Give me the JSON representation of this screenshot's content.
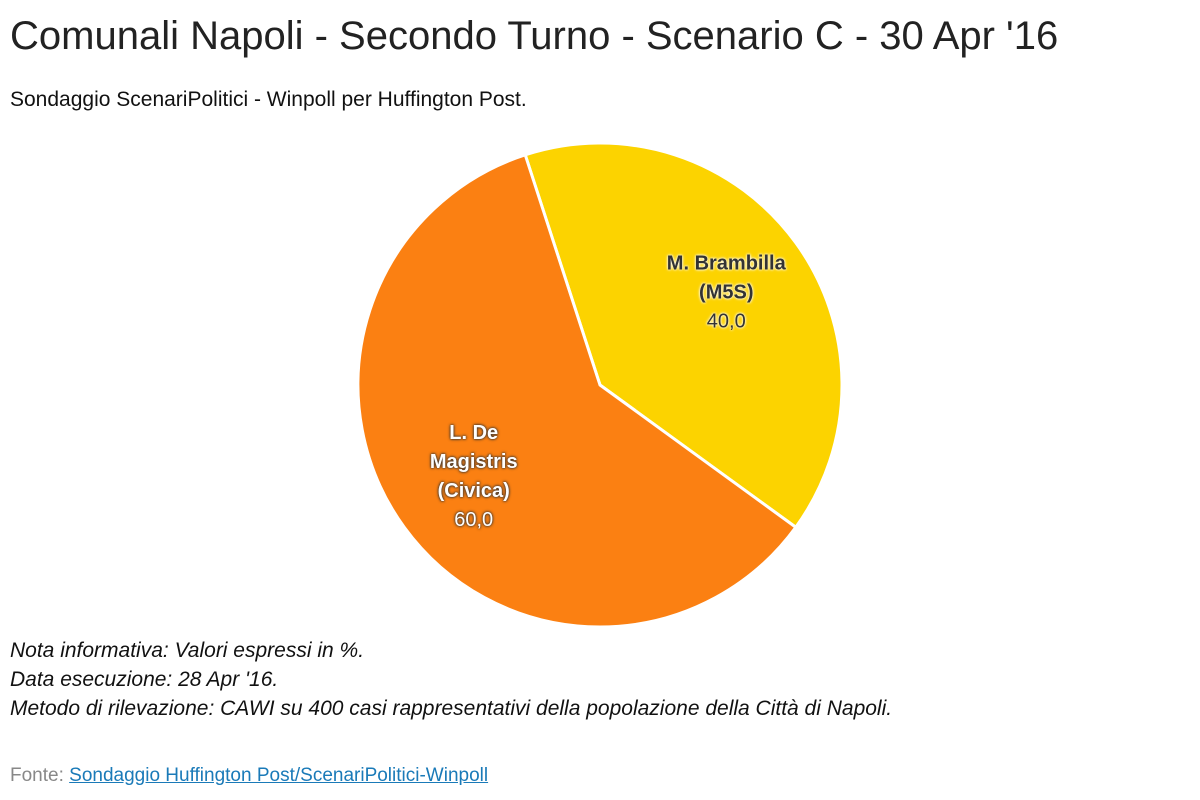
{
  "chart_data": {
    "type": "pie",
    "title": "Comunali Napoli - Secondo Turno - Scenario C - 30 Apr '16",
    "subtitle": "Sondaggio ScenariPolitici - Winpoll per Huffington Post.",
    "categories": [
      "M. Brambilla (M5S)",
      "L. De Magistris (Civica)"
    ],
    "values": [
      40,
      60
    ],
    "value_labels": [
      "40,0",
      "60,0"
    ],
    "colors": [
      "#fcd300",
      "#fb8012"
    ],
    "notes": [
      "Nota informativa: Valori espressi in %.",
      "Data esecuzione: 28 Apr '16.",
      "Metodo di rilevazione: CAWI su 400 casi rappresentativi della popolazione della Città di Napoli."
    ],
    "source_label": "Fonte:",
    "source_link": "Sondaggio Huffington Post/ScenariPolitici-Winpoll"
  }
}
